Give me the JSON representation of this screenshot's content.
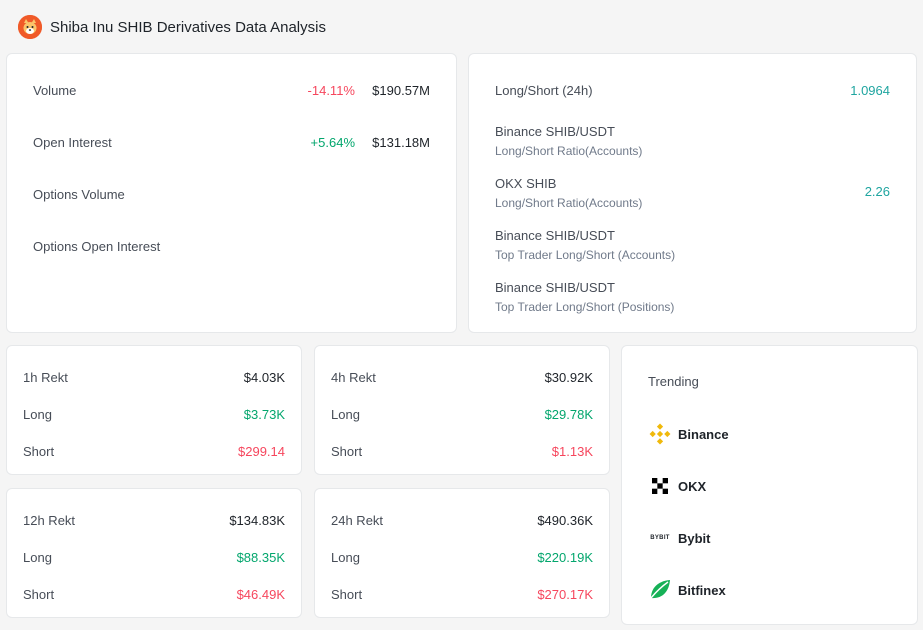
{
  "header": {
    "title": "Shiba Inu SHIB Derivatives Data Analysis",
    "logo_icon": "shiba-inu-logo"
  },
  "overview": [
    {
      "label": "Volume",
      "change": "-14.11%",
      "change_dir": "down",
      "amount": "$190.57M"
    },
    {
      "label": "Open Interest",
      "change": "+5.64%",
      "change_dir": "up",
      "amount": "$131.18M"
    },
    {
      "label": "Options Volume",
      "change": "",
      "change_dir": "",
      "amount": ""
    },
    {
      "label": "Options Open Interest",
      "change": "",
      "change_dir": "",
      "amount": ""
    }
  ],
  "ratios": {
    "long_short_24h": {
      "label": "Long/Short (24h)",
      "value": "1.0964"
    },
    "items": [
      {
        "title": "Binance SHIB/USDT",
        "subtitle": "Long/Short Ratio(Accounts)",
        "value": ""
      },
      {
        "title": "OKX SHIB",
        "subtitle": "Long/Short Ratio(Accounts)",
        "value": "2.26"
      },
      {
        "title": "Binance SHIB/USDT",
        "subtitle": "Top Trader Long/Short (Accounts)",
        "value": ""
      },
      {
        "title": "Binance SHIB/USDT",
        "subtitle": "Top Trader Long/Short (Positions)",
        "value": ""
      }
    ]
  },
  "rekt": {
    "h1": {
      "label": "1h Rekt",
      "total": "$4.03K",
      "long_label": "Long",
      "long": "$3.73K",
      "short_label": "Short",
      "short": "$299.14"
    },
    "h4": {
      "label": "4h Rekt",
      "total": "$30.92K",
      "long_label": "Long",
      "long": "$29.78K",
      "short_label": "Short",
      "short": "$1.13K"
    },
    "h12": {
      "label": "12h Rekt",
      "total": "$134.83K",
      "long_label": "Long",
      "long": "$88.35K",
      "short_label": "Short",
      "short": "$46.49K"
    },
    "h24": {
      "label": "24h Rekt",
      "total": "$490.36K",
      "long_label": "Long",
      "long": "$220.19K",
      "short_label": "Short",
      "short": "$270.17K"
    }
  },
  "trending": {
    "title": "Trending",
    "exchanges": [
      {
        "name": "Binance",
        "icon": "binance-logo"
      },
      {
        "name": "OKX",
        "icon": "okx-logo"
      },
      {
        "name": "Bybit",
        "icon": "bybit-logo",
        "icon_text": "BYBIT"
      },
      {
        "name": "Bitfinex",
        "icon": "bitfinex-logo"
      }
    ]
  },
  "colors": {
    "green": "#03a66d",
    "red": "#f6465d",
    "teal": "#1fa5a0",
    "binance": "#f0b90b",
    "shib": "#f05a28",
    "bitfinex": "#16b157"
  }
}
